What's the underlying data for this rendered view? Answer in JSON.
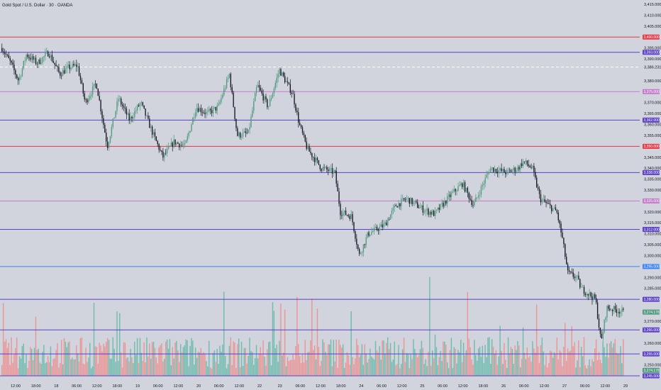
{
  "chart_title": "Gold Spot / U.S. Dollar · 30 · OANDA",
  "colors": {
    "background": "#d1d4dc",
    "up": "#4f9a7e",
    "down": "#131722",
    "vol_up": "#5fb7a6",
    "vol_down": "#ee8a8a",
    "red_level": "#e53945",
    "purple_level": "#5b3fc4",
    "pink_level": "#c47ac9",
    "blue_level": "#3b82f6",
    "price_tag": "#4f9a7e",
    "price_tag_dark": "#22577a",
    "dashed": "#ffffff"
  },
  "chart_data": {
    "type": "candlestick",
    "y_axis": {
      "min": 3245,
      "max": 3415,
      "step": 5,
      "ticks": [
        "3,415.000",
        "3,410.000",
        "3,405.000",
        "3,400.000",
        "3,395.000",
        "3,390.000",
        "3,385.000",
        "3,380.000",
        "3,375.000",
        "3,370.000",
        "3,365.000",
        "3,360.000",
        "3,355.000",
        "3,350.000",
        "3,345.000",
        "3,340.000",
        "3,335.000",
        "3,330.000",
        "3,325.000",
        "3,320.000",
        "3,315.000",
        "3,310.000",
        "3,305.000",
        "3,300.000",
        "3,295.000",
        "3,290.000",
        "3,285.000",
        "3,280.000",
        "3,275.000",
        "3,270.000",
        "3,265.000",
        "3,260.000",
        "3,255.000",
        "3,250.000",
        "3,245.000"
      ]
    },
    "x_labels": [
      "12:00",
      "18:00",
      "18",
      "06:00",
      "12:00",
      "18:00",
      "19",
      "06:00",
      "12:00",
      "20",
      "06:00",
      "12:00",
      "22",
      "23",
      "06:00",
      "12:00",
      "18:00",
      "24",
      "06:00",
      "12:00",
      "25",
      "06:00",
      "12:00",
      "18:00",
      "26",
      "06:00",
      "12:00",
      "27",
      "06:00",
      "12:00",
      "29"
    ],
    "levels": [
      {
        "price": 3400.0,
        "label": "3,400.000",
        "kind": "red"
      },
      {
        "price": 3393.0,
        "label": "3,393.000",
        "kind": "purple"
      },
      {
        "price": 3386.231,
        "label": "3,386.231",
        "kind": "dashed"
      },
      {
        "price": 3375.0,
        "label": "3,375.000",
        "kind": "pink"
      },
      {
        "price": 3362.0,
        "label": "3,362.000",
        "kind": "purple"
      },
      {
        "price": 3350.0,
        "label": "3,350.000",
        "kind": "red"
      },
      {
        "price": 3338.0,
        "label": "3,338.000",
        "kind": "purple"
      },
      {
        "price": 3325.0,
        "label": "3,325.000",
        "kind": "pink"
      },
      {
        "price": 3312.0,
        "label": "3,312.000",
        "kind": "purple"
      },
      {
        "price": 3295.0,
        "label": "3,295.000",
        "kind": "blue"
      },
      {
        "price": 3280.0,
        "label": "3,280.000",
        "kind": "purple"
      },
      {
        "price": 3266.0,
        "label": "3,266.000",
        "kind": "purple"
      },
      {
        "price": 3255.0,
        "label": "3,255.000",
        "kind": "purple"
      },
      {
        "price": 3245.0,
        "label": "3,245.000",
        "kind": "purple"
      }
    ],
    "current_price": {
      "price": 3274.178,
      "label": "3,274.178"
    },
    "small_tag": {
      "price": 3247.5,
      "label": "3,274.178"
    },
    "path_keypoints": [
      [
        0,
        3395
      ],
      [
        8,
        3388
      ],
      [
        15,
        3380
      ],
      [
        22,
        3392
      ],
      [
        32,
        3388
      ],
      [
        42,
        3393
      ],
      [
        52,
        3383
      ],
      [
        60,
        3386
      ],
      [
        68,
        3387
      ],
      [
        75,
        3370
      ],
      [
        85,
        3379
      ],
      [
        95,
        3350
      ],
      [
        105,
        3372
      ],
      [
        115,
        3362
      ],
      [
        125,
        3370
      ],
      [
        135,
        3357
      ],
      [
        145,
        3345
      ],
      [
        155,
        3352
      ],
      [
        165,
        3350
      ],
      [
        175,
        3368
      ],
      [
        185,
        3365
      ],
      [
        195,
        3368
      ],
      [
        205,
        3383
      ],
      [
        212,
        3355
      ],
      [
        222,
        3356
      ],
      [
        230,
        3378
      ],
      [
        240,
        3368
      ],
      [
        250,
        3385
      ],
      [
        262,
        3374
      ],
      [
        268,
        3360
      ],
      [
        275,
        3349
      ],
      [
        288,
        3340
      ],
      [
        300,
        3338
      ],
      [
        305,
        3320
      ],
      [
        315,
        3318
      ],
      [
        322,
        3300
      ],
      [
        330,
        3310
      ],
      [
        345,
        3314
      ],
      [
        355,
        3323
      ],
      [
        365,
        3326
      ],
      [
        380,
        3321
      ],
      [
        390,
        3319
      ],
      [
        405,
        3328
      ],
      [
        415,
        3333
      ],
      [
        425,
        3323
      ],
      [
        440,
        3340
      ],
      [
        455,
        3338
      ],
      [
        465,
        3340
      ],
      [
        470,
        3343
      ],
      [
        478,
        3340
      ],
      [
        485,
        3326
      ],
      [
        495,
        3322
      ],
      [
        500,
        3320
      ],
      [
        505,
        3308
      ],
      [
        510,
        3292
      ],
      [
        518,
        3290
      ],
      [
        522,
        3285
      ],
      [
        530,
        3282
      ],
      [
        535,
        3280
      ],
      [
        540,
        3260
      ],
      [
        545,
        3276
      ],
      [
        555,
        3275
      ],
      [
        560,
        3274
      ]
    ],
    "candle_count": 460
  }
}
